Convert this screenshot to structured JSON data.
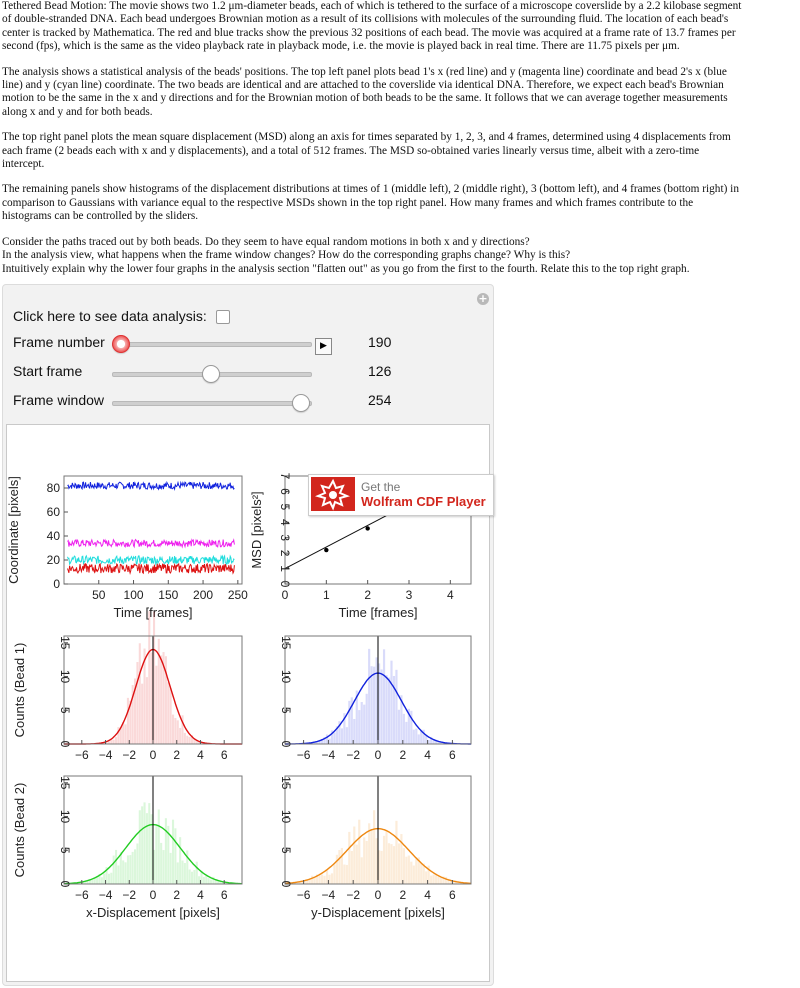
{
  "description": {
    "p1": [
      "Tethered Bead Motion: The movie shows two 1.2 μm-diameter beads, each of which is tethered to the surface of a microscope coverslide by a 2.2 kilobase segment",
      "of double-stranded DNA. Each bead undergoes Brownian motion as a result of its collisions with molecules of the surrounding fluid. The location of each bead's",
      "center is tracked by Mathematica. The red and blue tracks show the previous 32 positions of each bead. The movie was acquired at a frame rate of 13.7 frames per",
      "second (fps), which is the same as the video playback rate in playback mode, i.e. the movie is played back in real time. There are 11.75 pixels per μm."
    ],
    "p2": [
      "The analysis shows a statistical analysis of the beads' positions. The top left panel plots bead 1's x (red line) and y (magenta line) coordinate and bead 2's x (blue",
      "line) and y (cyan line) coordinate. The two beads are identical and are attached to the coverslide via identical DNA. Therefore, we expect each bead's Brownian",
      "motion to be the same in the x and y directions and for the Brownian motion of both beads to be the same. It follows that we can average together measurements",
      "along x and y and for both beads."
    ],
    "p3": [
      "The top right panel plots the mean square displacement (MSD) along an axis for times separated by 1, 2, 3, and 4 frames, determined using 4 displacements from",
      "each frame (2 beads each with x and y displacements), and a total of 512 frames. The MSD so-obtained varies linearly versus time, albeit with a zero-time",
      "intercept."
    ],
    "p4": [
      "The remaining panels show histograms of the displacement distributions at times of 1 (middle left), 2 (middle right), 3 (bottom left), and 4 frames (bottom right) in",
      "comparison to Gaussians with variance equal to the respective MSDs shown in the top right panel. How many frames and which frames contribute to the",
      "histograms can be controlled by the sliders."
    ],
    "p5": [
      "Consider the paths traced out by both beads. Do they seem to have equal random motions in both x and y directions?",
      "In the analysis view, what happens when the frame window changes? How do the corresponding graphs change? Why is this?",
      "Intuitively explain why the lower four graphs in the analysis section \"flatten out\" as you go from the first to the fourth. Relate this to the top right graph."
    ]
  },
  "controls": {
    "analysis_label": "Click here to see data analysis:",
    "frame_number_label": "Frame number",
    "frame_number_value": "190",
    "start_frame_label": "Start frame",
    "start_frame_value": "126",
    "frame_window_label": "Frame window",
    "frame_window_value": "254",
    "play_symbol": "▶",
    "plus_symbol": "+"
  },
  "cdf_badge": {
    "line1": "Get the",
    "line2": "Wolfram CDF Player",
    "color": "#d2261d"
  },
  "colors": {
    "red": "#dd1111",
    "magenta": "#ee22ee",
    "blue": "#1122dd",
    "cyan": "#22dddd",
    "green": "#22cc22",
    "orange": "#ee8811"
  },
  "chart_data": [
    {
      "type": "line",
      "ylabel": "Coordinate [pixels]",
      "xlabel": "Time [frames]",
      "x_ticks": [
        "50",
        "100",
        "150",
        "200",
        "250"
      ],
      "y_ticks": [
        "0",
        "20",
        "40",
        "60",
        "80"
      ],
      "xlim": [
        0,
        256
      ],
      "ylim": [
        0,
        90
      ],
      "series": [
        {
          "color": "#1122dd",
          "mean": 82,
          "amp": 3
        },
        {
          "color": "#ee22ee",
          "mean": 34,
          "amp": 3
        },
        {
          "color": "#22dddd",
          "mean": 20,
          "amp": 3.5
        },
        {
          "color": "#dd1111",
          "mean": 13,
          "amp": 4
        }
      ]
    },
    {
      "type": "scatter",
      "ylabel": "MSD [pixels²]",
      "xlabel": "Time [frames]",
      "x_ticks": [
        "0",
        "1",
        "2",
        "3",
        "4"
      ],
      "y_ticks": [
        "0",
        "1",
        "2",
        "3",
        "4",
        "5",
        "6",
        "7"
      ],
      "xlim": [
        0,
        4.5
      ],
      "ylim": [
        0,
        7
      ],
      "points": [
        {
          "x": 1,
          "y": 2.2
        },
        {
          "x": 2,
          "y": 3.6
        }
      ],
      "fit": {
        "intercept": 1.0,
        "slope": 1.4
      }
    },
    {
      "type": "bar",
      "ylabel": "Counts (Bead 1)",
      "x_ticks": [
        "−6",
        "−4",
        "−2",
        "0",
        "2",
        "4",
        "6"
      ],
      "y_ticks": [
        "0",
        "5",
        "10",
        "15"
      ],
      "xlim": [
        -7.5,
        7.5
      ],
      "ylim": [
        0,
        16
      ],
      "color": "#dd1111",
      "gauss_peak": 14,
      "gauss_sigma": 1.45
    },
    {
      "type": "bar",
      "x_ticks": [
        "−6",
        "−4",
        "−2",
        "0",
        "2",
        "4",
        "6"
      ],
      "y_ticks": [
        "0",
        "5",
        "10",
        "15"
      ],
      "xlim": [
        -7.5,
        7.5
      ],
      "ylim": [
        0,
        16
      ],
      "color": "#1122dd",
      "gauss_peak": 10.5,
      "gauss_sigma": 1.9
    },
    {
      "type": "bar",
      "ylabel": "Counts (Bead 2)",
      "xlabel": "x-Displacement [pixels]",
      "x_ticks": [
        "−6",
        "−4",
        "−2",
        "0",
        "2",
        "4",
        "6"
      ],
      "y_ticks": [
        "0",
        "5",
        "10",
        "15"
      ],
      "xlim": [
        -7.5,
        7.5
      ],
      "ylim": [
        0,
        16
      ],
      "color": "#22cc22",
      "gauss_peak": 8.8,
      "gauss_sigma": 2.3
    },
    {
      "type": "bar",
      "xlabel": "y-Displacement [pixels]",
      "x_ticks": [
        "−6",
        "−4",
        "−2",
        "0",
        "2",
        "4",
        "6"
      ],
      "y_ticks": [
        "0",
        "5",
        "10",
        "15"
      ],
      "xlim": [
        -7.5,
        7.5
      ],
      "ylim": [
        0,
        16
      ],
      "color": "#ee8811",
      "gauss_peak": 8.2,
      "gauss_sigma": 2.5
    }
  ]
}
